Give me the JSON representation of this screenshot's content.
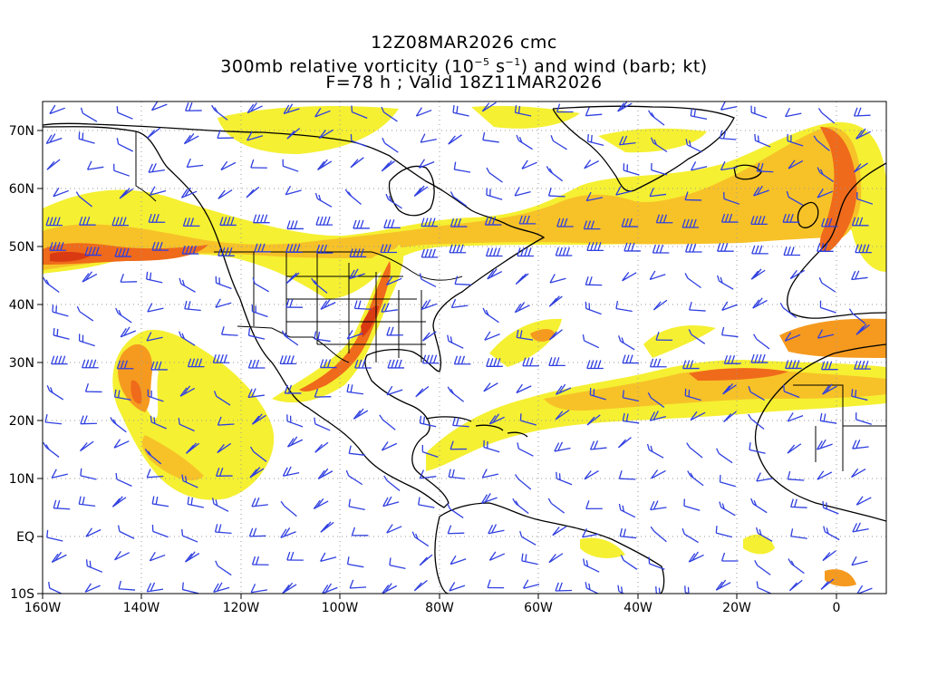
{
  "title": {
    "line1": "12Z08MAR2026 cmc",
    "line2_prefix": "300mb relative vorticity (10",
    "line2_exp1": "−5",
    "line2_mid": " s",
    "line2_exp2": "−1",
    "line2_suffix": ") and wind (barb; kt)",
    "line3": "F=78 h ; Valid 18Z11MAR2026"
  },
  "axes": {
    "x_ticks": [
      "160W",
      "140W",
      "120W",
      "100W",
      "80W",
      "60W",
      "40W",
      "20W",
      "0"
    ],
    "y_ticks": [
      "70N",
      "60N",
      "50N",
      "40N",
      "30N",
      "20N",
      "10N",
      "EQ",
      "10S"
    ],
    "lon_range": [
      -160,
      10
    ],
    "lat_range": [
      -10,
      75
    ]
  },
  "colors": {
    "level1": "#f5f032",
    "level2": "#e8e628",
    "level3": "#f7c228",
    "level4": "#f59a1f",
    "level5": "#ef6a1a",
    "level6": "#d93a12",
    "barb": "#2f3fe0",
    "coast": "#000000",
    "grid": "#9a9a9a"
  }
}
